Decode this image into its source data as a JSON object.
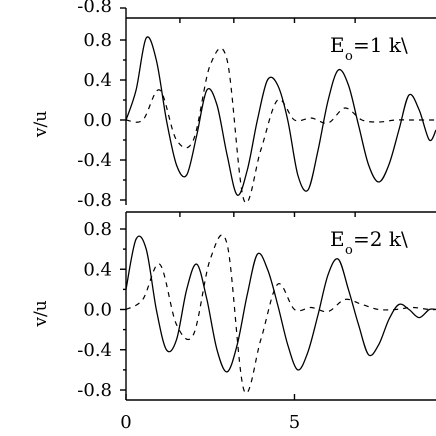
{
  "chart_data": [
    {
      "type": "line",
      "title": "",
      "xlabel": "",
      "ylabel": "v/u",
      "xlim": [
        0,
        9.2
      ],
      "ylim": [
        -0.8,
        0.8
      ],
      "yticks": [
        "-0.8",
        "-0.4",
        "0.0",
        "0.4",
        "0.8"
      ],
      "annotation": {
        "main": "E",
        "sub": "o",
        "rest": "=1 k\\"
      },
      "series": [
        {
          "style": "solid",
          "x": [
            0,
            0.3,
            0.6,
            0.9,
            1.2,
            1.5,
            1.8,
            2.1,
            2.4,
            2.7,
            3.0,
            3.3,
            3.6,
            3.9,
            4.2,
            4.5,
            4.8,
            5.1,
            5.4,
            5.7,
            6.0,
            6.3,
            6.6,
            6.9,
            7.2,
            7.5,
            7.8,
            8.1,
            8.4,
            8.7,
            9.0,
            9.2
          ],
          "y": [
            0.0,
            0.3,
            0.82,
            0.6,
            0.0,
            -0.45,
            -0.55,
            -0.15,
            0.3,
            0.15,
            -0.35,
            -0.75,
            -0.5,
            0.0,
            0.4,
            0.35,
            0.0,
            -0.55,
            -0.7,
            -0.3,
            0.2,
            0.5,
            0.35,
            -0.05,
            -0.45,
            -0.62,
            -0.45,
            -0.1,
            0.25,
            0.1,
            -0.2,
            -0.1
          ]
        },
        {
          "style": "dashed",
          "x": [
            0,
            0.5,
            1.0,
            1.5,
            2.0,
            2.5,
            3.0,
            3.5,
            4.0,
            4.5,
            5.0,
            5.5,
            6.0,
            6.5,
            7.0,
            7.5,
            8.0,
            8.5,
            9.0,
            9.2
          ],
          "y": [
            0.0,
            0.0,
            0.3,
            -0.2,
            -0.2,
            0.55,
            0.6,
            -0.8,
            -0.3,
            0.2,
            0.0,
            0.02,
            -0.03,
            0.12,
            0.0,
            -0.02,
            0.0,
            0.0,
            0.0,
            0.0
          ]
        }
      ]
    },
    {
      "type": "line",
      "title": "",
      "xlabel": "",
      "ylabel": "v/u",
      "xlim": [
        0,
        9.2
      ],
      "ylim": [
        -0.8,
        0.8
      ],
      "xticks": [
        "0",
        "5"
      ],
      "yticks": [
        "-0.8",
        "-0.4",
        "0.0",
        "0.4",
        "0.8"
      ],
      "annotation": {
        "main": "E",
        "sub": "o",
        "rest": "=2 k\\"
      },
      "series": [
        {
          "style": "solid",
          "x": [
            0,
            0.3,
            0.6,
            0.9,
            1.2,
            1.5,
            1.8,
            2.1,
            2.4,
            2.7,
            3.0,
            3.3,
            3.6,
            3.9,
            4.2,
            4.5,
            4.8,
            5.1,
            5.4,
            5.7,
            6.0,
            6.3,
            6.6,
            6.9,
            7.2,
            7.5,
            7.8,
            8.1,
            8.4,
            8.7,
            9.0,
            9.2
          ],
          "y": [
            0.2,
            0.7,
            0.6,
            0.0,
            -0.4,
            -0.3,
            0.2,
            0.45,
            0.1,
            -0.4,
            -0.62,
            -0.35,
            0.15,
            0.55,
            0.4,
            0.05,
            -0.35,
            -0.6,
            -0.42,
            -0.05,
            0.35,
            0.5,
            0.2,
            -0.15,
            -0.45,
            -0.35,
            -0.1,
            0.05,
            0.0,
            -0.08,
            0.0,
            0.0
          ]
        },
        {
          "style": "dashed",
          "x": [
            0,
            0.5,
            1.0,
            1.5,
            2.0,
            2.5,
            3.0,
            3.5,
            4.0,
            4.5,
            5.0,
            5.5,
            6.0,
            6.5,
            7.0,
            7.5,
            8.0,
            8.5,
            9.0,
            9.2
          ],
          "y": [
            0.0,
            0.1,
            0.45,
            -0.15,
            -0.25,
            0.5,
            0.65,
            -0.8,
            -0.3,
            0.25,
            0.0,
            0.02,
            -0.02,
            0.1,
            0.05,
            0.0,
            0.0,
            0.02,
            0.0,
            0.0
          ]
        }
      ]
    }
  ],
  "top_cut_label": "-0.8"
}
